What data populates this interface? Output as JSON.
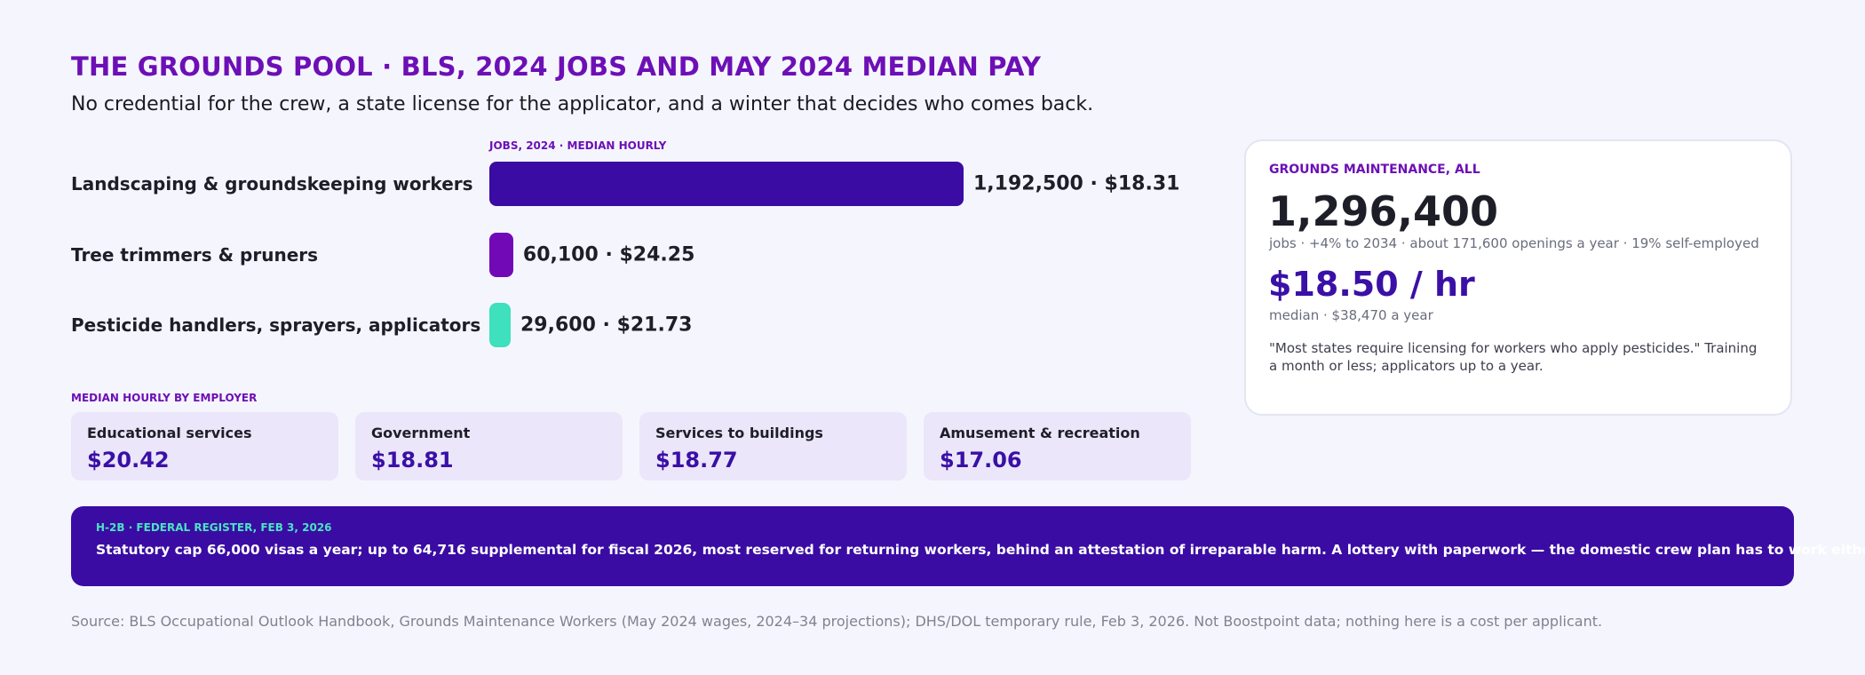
{
  "header": {
    "title": "THE GROUNDS POOL · BLS, 2024 JOBS AND MAY 2024 MEDIAN PAY",
    "subtitle": "No credential for the crew, a state license for the applicator, and a winter that decides who comes back."
  },
  "chart_data": {
    "type": "bar",
    "orientation": "horizontal",
    "caption": "JOBS, 2024 · MEDIAN HOURLY",
    "categories": [
      "Landscaping & groundskeeping workers",
      "Tree trimmers & pruners",
      "Pesticide handlers, sprayers, applicators"
    ],
    "series": [
      {
        "values": [
          1192500,
          60100,
          29600
        ]
      }
    ],
    "median_hourly": [
      18.31,
      24.25,
      21.73
    ],
    "value_labels": [
      "1,192,500 · $18.31",
      "60,100 · $24.25",
      "29,600 · $21.73"
    ],
    "colors": [
      "#3a0ca3",
      "#7209b7",
      "#3ee0bd"
    ],
    "xlim": [
      0,
      1192500
    ],
    "grid": false
  },
  "employers": {
    "caption": "MEDIAN HOURLY BY EMPLOYER",
    "items": [
      {
        "name": "Educational services",
        "value": "$20.42"
      },
      {
        "name": "Government",
        "value": "$18.81"
      },
      {
        "name": "Services to buildings",
        "value": "$18.77"
      },
      {
        "name": "Amusement & recreation",
        "value": "$17.06"
      }
    ]
  },
  "stat_card": {
    "caption": "GROUNDS MAINTENANCE, ALL",
    "jobs": "1,296,400",
    "jobs_detail": "jobs · +4% to 2034 · about 171,600 openings a year · 19% self-employed",
    "pay": "$18.50 / hr",
    "pay_detail": "median · $38,470 a year",
    "note": "\"Most states require licensing for workers who apply pesticides.\" Training a month or less; applicators up to a year."
  },
  "banner": {
    "caption": "H-2B · FEDERAL REGISTER, FEB 3, 2026",
    "text": "Statutory cap 66,000 visas a year; up to 64,716 supplemental for fiscal 2026, most reserved for returning workers, behind an attestation of irreparable harm. A lottery with paperwork — the domestic crew plan has to work either way."
  },
  "source": "Source: BLS Occupational Outlook Handbook, Grounds Maintenance Workers (May 2024 wages, 2024–34 projections); DHS/DOL temporary rule, Feb 3, 2026. Not Boostpoint data; nothing here is a cost per applicant."
}
